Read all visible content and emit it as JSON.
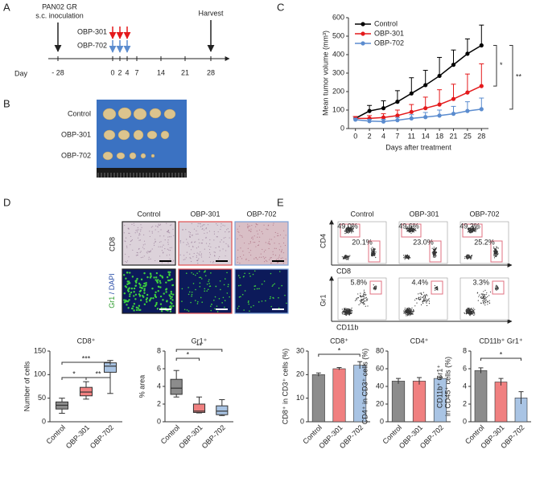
{
  "panels": [
    "A",
    "B",
    "C",
    "D",
    "E"
  ],
  "timeline": {
    "inoculation": [
      "PAN02 GR",
      "s.c. inoculation"
    ],
    "harvest": "Harvest",
    "day_label": "Day",
    "days": [
      "- 28",
      "0",
      "2",
      "4",
      "7",
      "14",
      "21",
      "28"
    ],
    "treatments": [
      "OBP-301",
      "OBP-702"
    ]
  },
  "photo": {
    "rows": [
      "Control",
      "OBP-301",
      "OBP-702"
    ]
  },
  "ihc": {
    "columns": [
      "Control",
      "OBP-301",
      "OBP-702"
    ],
    "cd8": "CD8",
    "gr1": "Gr1",
    "separator": "/",
    "dapi": "DAPI"
  },
  "flow": {
    "columns": [
      "Control",
      "OBP-301",
      "OBP-702"
    ],
    "rows": [
      {
        "y": "CD4",
        "x": "CD8",
        "gates": [
          [
            "49.0%",
            "20.1%"
          ],
          [
            "49.6%",
            "23.0%"
          ],
          [
            "49.2%",
            "25.2%"
          ]
        ]
      },
      {
        "y": "Gr1",
        "x": "CD11b",
        "gates": [
          [
            "5.8%"
          ],
          [
            "4.4%"
          ],
          [
            "3.3%"
          ]
        ]
      }
    ]
  },
  "chart_data": [
    {
      "type": "line",
      "ylabel": "Mean tumor volume (mm³)",
      "xlabel": "Days after treatment",
      "categories": [
        "0",
        "2",
        "4",
        "7",
        "11",
        "14",
        "18",
        "21",
        "25",
        "28"
      ],
      "series": [
        {
          "name": "Control",
          "color": "#000000",
          "values": [
            55,
            95,
            110,
            145,
            190,
            235,
            285,
            345,
            405,
            450
          ],
          "errors": [
            10,
            30,
            40,
            60,
            85,
            80,
            100,
            80,
            80,
            110
          ]
        },
        {
          "name": "OBP-301",
          "color": "#e41a1c",
          "values": [
            55,
            55,
            60,
            70,
            90,
            110,
            130,
            160,
            195,
            230
          ],
          "errors": [
            10,
            15,
            20,
            30,
            40,
            60,
            80,
            80,
            100,
            120
          ]
        },
        {
          "name": "OBP-702",
          "color": "#5b8ccf",
          "values": [
            48,
            40,
            38,
            45,
            55,
            62,
            70,
            80,
            95,
            105
          ],
          "errors": [
            8,
            10,
            12,
            15,
            20,
            25,
            30,
            40,
            50,
            60
          ]
        }
      ],
      "ylim": [
        0,
        600
      ],
      "yticks": [
        0,
        100,
        200,
        300,
        400,
        500,
        600
      ],
      "legend": "upper left",
      "annotations": [
        "*",
        "**"
      ]
    },
    {
      "type": "box",
      "title": "CD8⁺",
      "ylabel": "Number of cells",
      "categories": [
        "Control",
        "OBP-301",
        "OBP-702"
      ],
      "colors": [
        "#8c8c8c",
        "#f08080",
        "#a9c4e4"
      ],
      "boxes": [
        {
          "min": 18,
          "q1": 27,
          "median": 35,
          "q3": 42,
          "max": 50
        },
        {
          "min": 48,
          "q1": 55,
          "median": 63,
          "q3": 73,
          "max": 85
        },
        {
          "min": 60,
          "q1": 105,
          "median": 118,
          "q3": 125,
          "max": 130
        }
      ],
      "ylim": [
        0,
        150
      ],
      "yticks": [
        0,
        50,
        100,
        150
      ],
      "annotations": [
        "*",
        "**",
        "***"
      ]
    },
    {
      "type": "box",
      "title": "Gr1⁺",
      "ylabel": "% area",
      "categories": [
        "Control",
        "OBP-301",
        "OBP-702"
      ],
      "colors": [
        "#8c8c8c",
        "#f08080",
        "#a9c4e4"
      ],
      "boxes": [
        {
          "min": 2.8,
          "q1": 3.1,
          "median": 3.8,
          "q3": 4.8,
          "max": 5.8
        },
        {
          "min": 1.0,
          "q1": 1.05,
          "median": 1.2,
          "q3": 2.0,
          "max": 2.8
        },
        {
          "min": 0.7,
          "q1": 0.8,
          "median": 1.2,
          "q3": 1.8,
          "max": 2.5
        }
      ],
      "ylim": [
        0,
        8
      ],
      "yticks": [
        0,
        2,
        4,
        6,
        8
      ],
      "annotations": [
        "*",
        "**"
      ]
    },
    {
      "type": "bar",
      "title": "CD8⁺",
      "ylabel": [
        "CD8⁺ in CD3⁺ cells (%)"
      ],
      "categories": [
        "Control",
        "OBP-301",
        "OBP-702"
      ],
      "colors": [
        "#8c8c8c",
        "#f08080",
        "#a9c4e4"
      ],
      "values": [
        20,
        22.5,
        24
      ],
      "errors": [
        0.7,
        0.5,
        1.5
      ],
      "ylim": [
        0,
        30
      ],
      "yticks": [
        0,
        10,
        20,
        30
      ],
      "annotations": [
        "*"
      ]
    },
    {
      "type": "bar",
      "title": "CD4⁺",
      "ylabel": [
        "CD4⁺ in CD3⁺ cells (%)"
      ],
      "categories": [
        "Control",
        "OBP-301",
        "OBP-702"
      ],
      "colors": [
        "#8c8c8c",
        "#f08080",
        "#a9c4e4"
      ],
      "values": [
        46,
        46,
        49
      ],
      "errors": [
        3,
        4,
        1.5
      ],
      "ylim": [
        0,
        80
      ],
      "yticks": [
        0,
        20,
        40,
        60,
        80
      ],
      "annotations": []
    },
    {
      "type": "bar",
      "title": "CD11b⁺ Gr1⁺",
      "ylabel": [
        "CD11b⁺ Gr1⁺",
        "in CD45⁺ cells (%)"
      ],
      "categories": [
        "Control",
        "OBP-301",
        "OBP-702"
      ],
      "colors": [
        "#8c8c8c",
        "#f08080",
        "#a9c4e4"
      ],
      "values": [
        5.8,
        4.5,
        2.7
      ],
      "errors": [
        0.3,
        0.4,
        0.7
      ],
      "ylim": [
        0,
        8
      ],
      "yticks": [
        0,
        2,
        4,
        6,
        8
      ],
      "annotations": [
        "*"
      ]
    }
  ]
}
